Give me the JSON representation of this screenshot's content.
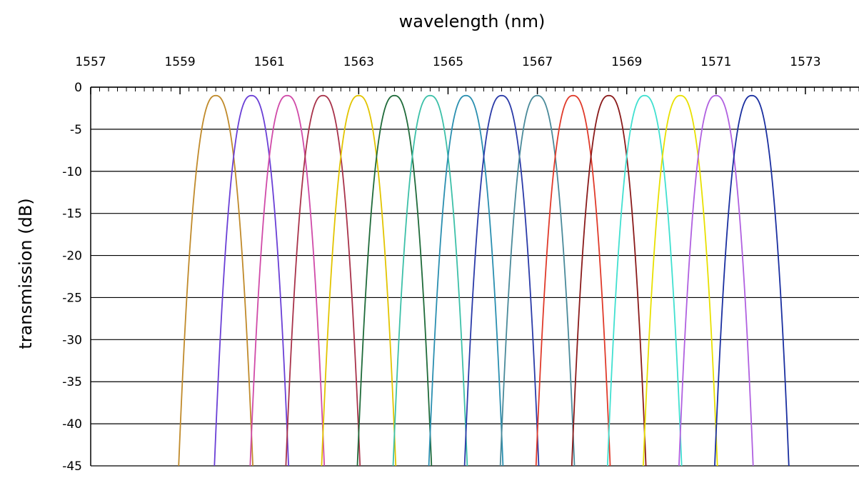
{
  "chart_data": {
    "type": "line",
    "title": "",
    "xlabel": "wavelength (nm)",
    "ylabel": "transmission (dB)",
    "x_axis_position": "top",
    "xlim": [
      1557,
      1574.2
    ],
    "ylim": [
      -45,
      0
    ],
    "x_ticks": [
      "1557",
      "1559",
      "1561",
      "1563",
      "1565",
      "1567",
      "1569",
      "1571",
      "1573"
    ],
    "y_ticks": [
      "0",
      "-5",
      "-10",
      "-15",
      "-20",
      "-25",
      "-30",
      "-35",
      "-40",
      "-45"
    ],
    "grid": "horizontal",
    "legend": "none",
    "peak_value_db": -1,
    "channel_3db_halfwidth_nm": 0.28,
    "channel_floor_halfwidth_nm": 0.83,
    "floor_db": -45,
    "series": [
      {
        "center_nm": 1559.8,
        "color": "#c08a2a"
      },
      {
        "center_nm": 1560.6,
        "color": "#6a3fd6"
      },
      {
        "center_nm": 1561.4,
        "color": "#d04aa8"
      },
      {
        "center_nm": 1562.2,
        "color": "#a8324a"
      },
      {
        "center_nm": 1563.0,
        "color": "#e2c400"
      },
      {
        "center_nm": 1563.8,
        "color": "#1f6b3a"
      },
      {
        "center_nm": 1564.6,
        "color": "#3cc0a8"
      },
      {
        "center_nm": 1565.4,
        "color": "#2a8fb0"
      },
      {
        "center_nm": 1566.2,
        "color": "#2a3aa8"
      },
      {
        "center_nm": 1567.0,
        "color": "#4a8a9a"
      },
      {
        "center_nm": 1567.8,
        "color": "#e03a2a"
      },
      {
        "center_nm": 1568.6,
        "color": "#8a1a1a"
      },
      {
        "center_nm": 1569.4,
        "color": "#40e0d0"
      },
      {
        "center_nm": 1570.2,
        "color": "#e8e000"
      },
      {
        "center_nm": 1571.0,
        "color": "#b060e0"
      },
      {
        "center_nm": 1571.8,
        "color": "#1a2fa0"
      }
    ]
  }
}
